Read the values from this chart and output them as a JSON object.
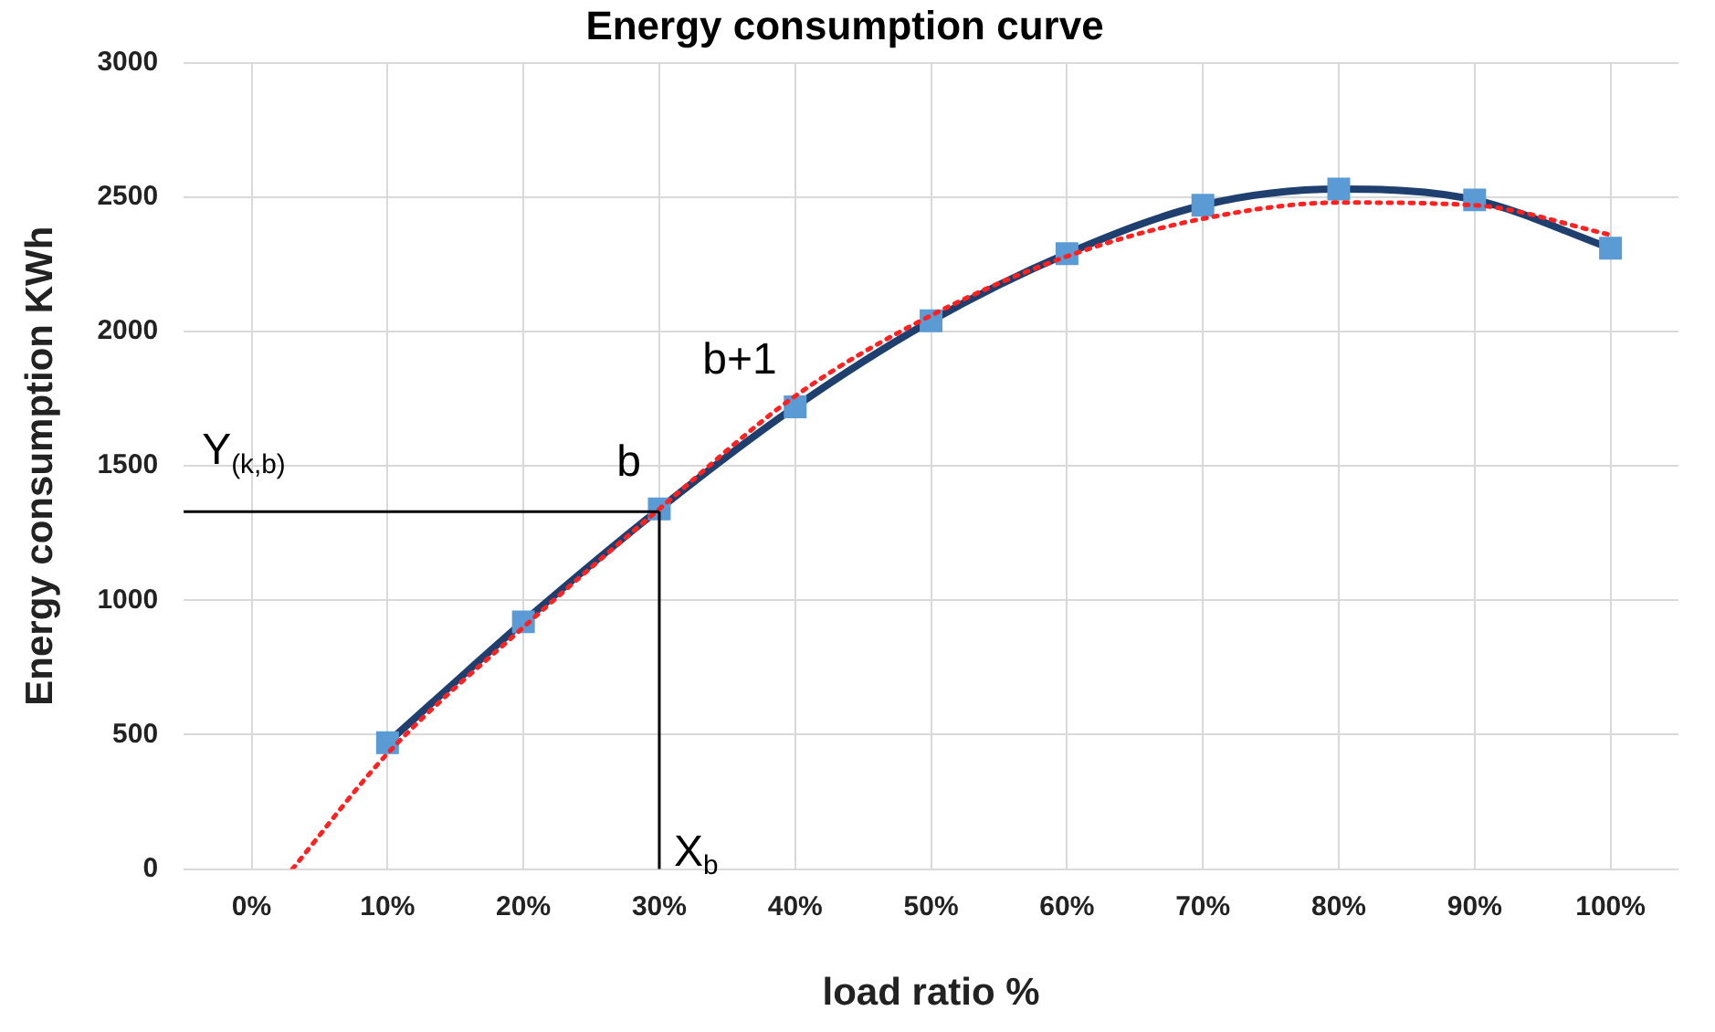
{
  "chart_data": {
    "type": "line",
    "title": "Energy consumption curve",
    "xlabel": "load ratio %",
    "ylabel": "Energy consumption KWh",
    "xlim": [
      -5,
      105
    ],
    "xticks": [
      {
        "value": 0,
        "label": "0%"
      },
      {
        "value": 10,
        "label": "10%"
      },
      {
        "value": 20,
        "label": "20%"
      },
      {
        "value": 30,
        "label": "30%"
      },
      {
        "value": 40,
        "label": "40%"
      },
      {
        "value": 50,
        "label": "50%"
      },
      {
        "value": 60,
        "label": "60%"
      },
      {
        "value": 70,
        "label": "70%"
      },
      {
        "value": 80,
        "label": "80%"
      },
      {
        "value": 90,
        "label": "90%"
      },
      {
        "value": 100,
        "label": "100%"
      }
    ],
    "ylim": [
      0,
      3000
    ],
    "yticks": [
      0,
      500,
      1000,
      1500,
      2000,
      2500,
      3000
    ],
    "grid": true,
    "legend": false,
    "series": [
      {
        "type": "line",
        "color": "#1f3f6e",
        "colors": [
          "#5b9bd5",
          "#5b9bd5",
          "#5b9bd5",
          "#5b9bd5",
          "#5b9bd5",
          "#5b9bd5",
          "#5b9bd5",
          "#5b9bd5",
          "#5b9bd5",
          "#5b9bd5"
        ],
        "marker": "square",
        "line_style": "solid",
        "x": [
          10,
          20,
          30,
          40,
          50,
          60,
          70,
          80,
          90,
          100
        ],
        "values": [
          470,
          920,
          1340,
          1720,
          2040,
          2290,
          2470,
          2530,
          2490,
          2310
        ]
      },
      {
        "type": "line",
        "color": "#ff2020",
        "marker": "none",
        "line_style": "dotted",
        "x": [
          3,
          10,
          20,
          30,
          40,
          50,
          60,
          70,
          80,
          90,
          100
        ],
        "values": [
          0,
          430,
          900,
          1340,
          1760,
          2060,
          2280,
          2420,
          2480,
          2470,
          2360
        ]
      }
    ],
    "ref_lines": [
      {
        "axis": "y",
        "value": 1330,
        "label": "Y$_{(k,b)}$",
        "color": "#000000"
      },
      {
        "axis": "x",
        "value": 30,
        "label": "X$_{b}$",
        "color": "#000000"
      }
    ],
    "annotations": [
      {
        "text": "b",
        "x": 30,
        "y": 1340
      },
      {
        "text": "b+1",
        "x": 40,
        "y": 1720
      }
    ]
  }
}
